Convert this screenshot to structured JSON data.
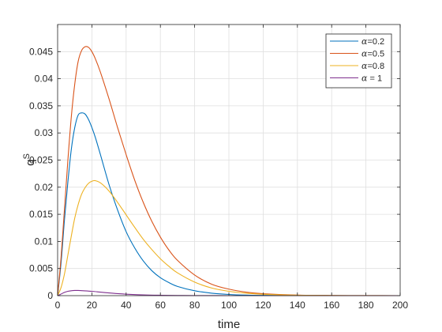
{
  "chart_data": {
    "type": "line",
    "xlabel": "time",
    "ylabel": "q",
    "ylabel_superscript": "S",
    "xlim": [
      0,
      200
    ],
    "ylim": [
      0,
      0.05
    ],
    "xticks": [
      0,
      20,
      40,
      60,
      80,
      100,
      120,
      140,
      160,
      180,
      200
    ],
    "xtick_labels": [
      "0",
      "20",
      "40",
      "60",
      "80",
      "100",
      "120",
      "140",
      "160",
      "180",
      "200"
    ],
    "yticks": [
      0,
      0.005,
      0.01,
      0.015,
      0.02,
      0.025,
      0.03,
      0.035,
      0.04,
      0.045
    ],
    "ytick_labels": [
      "0",
      "0.005",
      "0.01",
      "0.015",
      "0.02",
      "0.025",
      "0.03",
      "0.035",
      "0.04",
      "0.045"
    ],
    "grid": true,
    "legend_position": "top-right",
    "series": [
      {
        "name": "α=0.2",
        "greek": "α",
        "suffix": "=0.2",
        "color": "#0072BD",
        "x": [
          0,
          2,
          4,
          6,
          8,
          10,
          12,
          14,
          16,
          18,
          20,
          22,
          25,
          30,
          35,
          40,
          45,
          50,
          55,
          60,
          65,
          70,
          80,
          90,
          100,
          110,
          120,
          140,
          160,
          180,
          200
        ],
        "y": [
          0,
          0.006,
          0.014,
          0.021,
          0.027,
          0.031,
          0.0333,
          0.0337,
          0.0335,
          0.0325,
          0.031,
          0.0292,
          0.026,
          0.0205,
          0.0158,
          0.0118,
          0.0088,
          0.0064,
          0.0046,
          0.0033,
          0.0024,
          0.0017,
          0.0009,
          0.00045,
          0.00022,
          0.0001,
          5e-05,
          1e-05,
          0,
          0,
          0
        ]
      },
      {
        "name": "α=0.5",
        "greek": "α",
        "suffix": "=0.5",
        "color": "#D95319",
        "x": [
          0,
          2,
          4,
          6,
          8,
          10,
          12,
          14,
          16,
          18,
          20,
          22,
          25,
          30,
          35,
          40,
          45,
          50,
          55,
          60,
          65,
          70,
          80,
          90,
          100,
          110,
          120,
          140,
          160,
          180,
          200
        ],
        "y": [
          0,
          0.007,
          0.016,
          0.025,
          0.033,
          0.039,
          0.0432,
          0.0452,
          0.0459,
          0.0458,
          0.045,
          0.0437,
          0.0412,
          0.0363,
          0.031,
          0.026,
          0.0213,
          0.0172,
          0.0137,
          0.0108,
          0.0084,
          0.0065,
          0.0038,
          0.0021,
          0.0012,
          0.00065,
          0.00035,
          0.0001,
          3e-05,
          1e-05,
          0
        ]
      },
      {
        "name": "α=0.8",
        "greek": "α",
        "suffix": "=0.8",
        "color": "#EDB120",
        "x": [
          0,
          2,
          4,
          6,
          8,
          10,
          12,
          14,
          16,
          18,
          20,
          22,
          25,
          30,
          35,
          40,
          45,
          50,
          55,
          60,
          65,
          70,
          80,
          90,
          100,
          110,
          120,
          140,
          160,
          180,
          200
        ],
        "y": [
          0,
          0.0015,
          0.004,
          0.0075,
          0.011,
          0.0143,
          0.0168,
          0.0187,
          0.0199,
          0.0207,
          0.0211,
          0.0212,
          0.0208,
          0.0193,
          0.0172,
          0.0149,
          0.0126,
          0.0104,
          0.0085,
          0.0068,
          0.0054,
          0.0042,
          0.0025,
          0.0014,
          0.0008,
          0.00045,
          0.00025,
          8e-05,
          2e-05,
          1e-05,
          0
        ]
      },
      {
        "name": "α = 1",
        "greek": "α",
        "suffix": " = 1",
        "color": "#7E2F8E",
        "x": [
          0,
          2,
          4,
          6,
          8,
          10,
          12,
          15,
          20,
          25,
          30,
          35,
          40,
          50,
          60,
          70,
          80,
          100,
          120,
          160,
          200
        ],
        "y": [
          0,
          0.0003,
          0.0006,
          0.0008,
          0.0009,
          0.00095,
          0.00095,
          0.0009,
          0.0008,
          0.00065,
          0.0005,
          0.00037,
          0.00027,
          0.00014,
          7e-05,
          3e-05,
          1e-05,
          0,
          0,
          0,
          0
        ]
      }
    ]
  }
}
